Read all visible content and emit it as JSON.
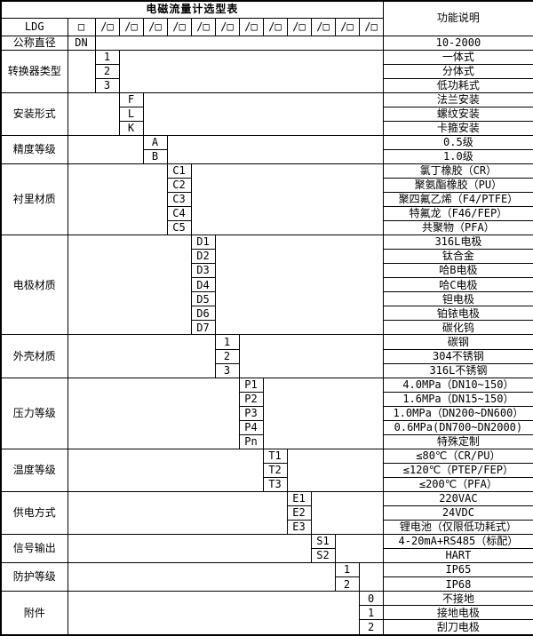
{
  "colors": {
    "border": "#000000",
    "background": "#ffffff",
    "text": "#000000"
  },
  "table": {
    "title": "电磁流量计选型表",
    "right_header": "功能说明",
    "model_row": {
      "prefix": "LDG",
      "first_box": "□",
      "box": "/□",
      "box_count": 12
    },
    "diameter_row": {
      "label": "公称直径",
      "code": "DN",
      "description": "10-2000"
    },
    "sections": [
      {
        "label": "转换器类型",
        "options": [
          {
            "code": "1",
            "desc": "一体式"
          },
          {
            "code": "2",
            "desc": "分体式"
          },
          {
            "code": "3",
            "desc": "低功耗式"
          }
        ]
      },
      {
        "label": "安装形式",
        "options": [
          {
            "code": "F",
            "desc": "法兰安装"
          },
          {
            "code": "L",
            "desc": "螺纹安装"
          },
          {
            "code": "K",
            "desc": "卡箍安装"
          }
        ]
      },
      {
        "label": "精度等级",
        "options": [
          {
            "code": "A",
            "desc": "0.5级"
          },
          {
            "code": "B",
            "desc": "1.0级"
          }
        ]
      },
      {
        "label": "衬里材质",
        "options": [
          {
            "code": "C1",
            "desc": "氯丁橡胶（CR）"
          },
          {
            "code": "C2",
            "desc": "聚氨酯橡胶（PU）"
          },
          {
            "code": "C3",
            "desc": "聚四氟乙烯（F4/PTFE）"
          },
          {
            "code": "C4",
            "desc": "特氟龙（F46/FEP）"
          },
          {
            "code": "C5",
            "desc": "共聚物（PFA）"
          }
        ]
      },
      {
        "label": "电极材质",
        "options": [
          {
            "code": "D1",
            "desc": "316L电极"
          },
          {
            "code": "D2",
            "desc": "钛合金"
          },
          {
            "code": "D3",
            "desc": "哈B电极"
          },
          {
            "code": "D4",
            "desc": "哈C电极"
          },
          {
            "code": "D5",
            "desc": "钽电极"
          },
          {
            "code": "D6",
            "desc": "铂铱电极"
          },
          {
            "code": "D7",
            "desc": "碳化钨"
          }
        ]
      },
      {
        "label": "外壳材质",
        "options": [
          {
            "code": "1",
            "desc": "碳钢"
          },
          {
            "code": "2",
            "desc": "304不锈钢"
          },
          {
            "code": "3",
            "desc": "316L不锈钢"
          }
        ]
      },
      {
        "label": "压力等级",
        "options": [
          {
            "code": "P1",
            "desc": "4.0MPa（DN10~150）",
            "align": "left"
          },
          {
            "code": "P2",
            "desc": "1.6MPa（DN15~150）",
            "align": "left"
          },
          {
            "code": "P3",
            "desc": "1.0MPa（DN200~DN600）",
            "align": "left"
          },
          {
            "code": "P4",
            "desc": "0.6MPa(DN700~DN2000)",
            "align": "left"
          },
          {
            "code": "Pn",
            "desc": "特殊定制"
          }
        ]
      },
      {
        "label": "温度等级",
        "options": [
          {
            "code": "T1",
            "desc": "≤80℃（CR/PU）"
          },
          {
            "code": "T2",
            "desc": "≤120℃（PTEP/FEP）"
          },
          {
            "code": "T3",
            "desc": "≤200℃（PFA）"
          }
        ]
      },
      {
        "label": "供电方式",
        "options": [
          {
            "code": "E1",
            "desc": "220VAC"
          },
          {
            "code": "E2",
            "desc": "24VDC"
          },
          {
            "code": "E3",
            "desc": "锂电池（仅限低功耗式）",
            "align": "left"
          }
        ]
      },
      {
        "label": "信号输出",
        "options": [
          {
            "code": "S1",
            "desc": "4-20mA+RS485（标配）"
          },
          {
            "code": "S2",
            "desc": "HART"
          }
        ]
      },
      {
        "label": "防护等级",
        "options": [
          {
            "code": "1",
            "desc": "IP65"
          },
          {
            "code": "2",
            "desc": "IP68"
          }
        ]
      },
      {
        "label": "附件",
        "options": [
          {
            "code": "0",
            "desc": "不接地"
          },
          {
            "code": "1",
            "desc": "接地电极"
          },
          {
            "code": "2",
            "desc": "刮刀电极"
          }
        ]
      }
    ]
  }
}
